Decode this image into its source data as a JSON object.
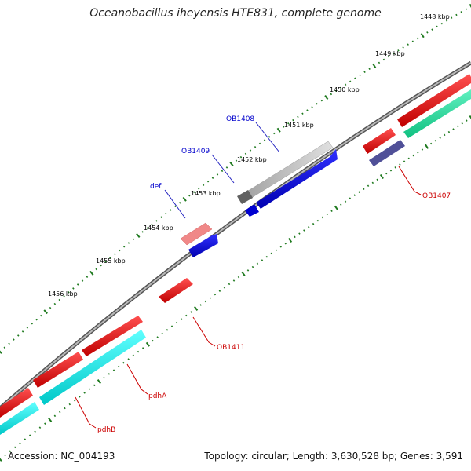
{
  "title": "Oceanobacillus iheyensis HTE831, complete genome",
  "footer": {
    "accession": "Accession: NC_004193",
    "summary": "Topology: circular; Length: 3,630,528 bp; Genes: 3,591"
  },
  "colors": {
    "backbone": "#808080",
    "forward_cds": "#e00000",
    "reverse_cds": "#0000e0",
    "rrna_light": "#c8c8c8",
    "pseudo_pink": "#f08080",
    "cyan_track": "#00e0e0",
    "green_track": "#20e0a0",
    "navy": "#404090",
    "tick": "#207020",
    "label_red": "#cc0000",
    "label_blue": "#0000cc"
  },
  "scale_labels": [
    "1448 kbp",
    "1449 kbp",
    "1450 kbp",
    "1451 kbp",
    "1452 kbp",
    "1453 kbp",
    "1454 kbp",
    "1455 kbp",
    "1456 kbp"
  ],
  "gene_labels": {
    "OB1408": "OB1408",
    "OB1409": "OB1409",
    "def": "def",
    "OB1407": "OB1407",
    "OB1411": "OB1411",
    "pdhA": "pdhA",
    "pdhB": "pdhB"
  }
}
